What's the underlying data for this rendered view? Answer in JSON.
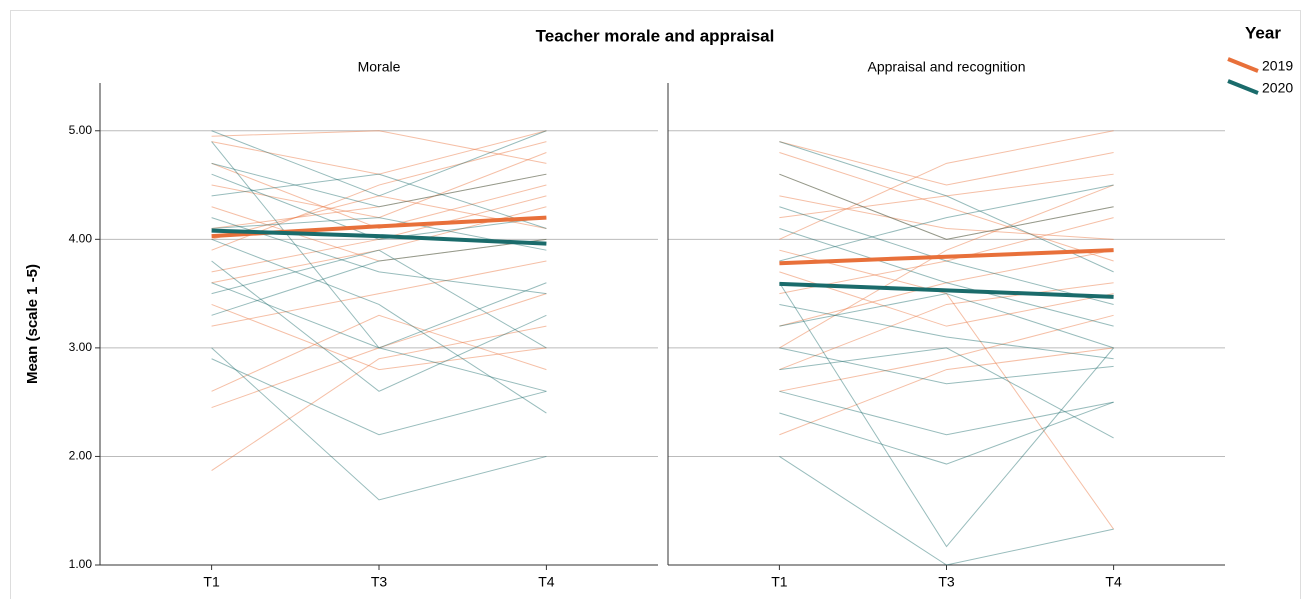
{
  "chart_data": {
    "type": "line",
    "title": "Teacher morale and appraisal",
    "y_label": "Mean (scale 1 -5)",
    "legend_title": "Year",
    "legend": "right",
    "grid": true,
    "categories": [
      "T1",
      "T3",
      "T4"
    ],
    "ylim": [
      1,
      5.44
    ],
    "yticks": [
      {
        "value": 1,
        "label": "1.00"
      },
      {
        "value": 2,
        "label": "2.00"
      },
      {
        "value": 3,
        "label": "3.00"
      },
      {
        "value": 4,
        "label": "4.00"
      },
      {
        "value": 5,
        "label": "5.00"
      }
    ],
    "panels": [
      {
        "title": "Morale",
        "series": [
          {
            "name": "2019",
            "color": "#e8703a",
            "values": [
              4.03,
              4.12,
              4.2
            ],
            "individuals": [
              [
                4.5,
                4.2,
                4.8
              ],
              [
                3.6,
                3.9,
                4.3
              ],
              [
                2.45,
                3.0,
                3.5
              ],
              [
                1.87,
                2.9,
                3.2
              ],
              [
                4.9,
                4.6,
                5.0
              ],
              [
                4.0,
                4.4,
                4.1
              ],
              [
                3.2,
                3.5,
                3.8
              ],
              [
                4.7,
                4.1,
                4.5
              ],
              [
                3.9,
                4.5,
                4.9
              ],
              [
                4.3,
                3.8,
                4.0
              ],
              [
                3.4,
                2.8,
                3.0
              ],
              [
                4.1,
                4.3,
                4.6
              ],
              [
                4.95,
                5.0,
                4.7
              ],
              [
                3.7,
                4.0,
                4.4
              ],
              [
                2.6,
                3.3,
                2.8
              ]
            ]
          },
          {
            "name": "2020",
            "color": "#1a6b6b",
            "values": [
              4.08,
              4.03,
              3.96
            ],
            "individuals": [
              [
                5.0,
                4.4,
                5.0
              ],
              [
                4.2,
                3.7,
                3.5
              ],
              [
                2.9,
                2.2,
                2.6
              ],
              [
                3.0,
                1.6,
                2.0
              ],
              [
                4.6,
                4.0,
                4.2
              ],
              [
                3.8,
                2.6,
                3.3
              ],
              [
                4.4,
                4.6,
                4.1
              ],
              [
                3.5,
                3.9,
                3.0
              ],
              [
                4.0,
                3.4,
                2.4
              ],
              [
                4.7,
                4.3,
                4.6
              ],
              [
                3.3,
                3.8,
                4.0
              ],
              [
                4.9,
                3.0,
                3.6
              ],
              [
                4.1,
                4.2,
                3.9
              ],
              [
                3.6,
                3.0,
                2.6
              ]
            ]
          }
        ]
      },
      {
        "title": "Appraisal and recognition",
        "series": [
          {
            "name": "2019",
            "color": "#e8703a",
            "values": [
              3.78,
              3.84,
              3.9
            ],
            "individuals": [
              [
                4.9,
                4.5,
                4.8
              ],
              [
                3.5,
                3.8,
                4.2
              ],
              [
                2.2,
                2.8,
                3.0
              ],
              [
                4.2,
                4.4,
                4.6
              ],
              [
                2.8,
                3.4,
                3.6
              ],
              [
                3.9,
                3.5,
                1.33
              ],
              [
                4.6,
                4.0,
                4.3
              ],
              [
                3.2,
                3.6,
                3.9
              ],
              [
                4.0,
                4.7,
                5.0
              ],
              [
                2.6,
                2.9,
                3.3
              ],
              [
                3.7,
                3.2,
                3.5
              ],
              [
                4.4,
                4.1,
                4.0
              ],
              [
                3.0,
                3.9,
                4.5
              ],
              [
                4.8,
                4.3,
                3.8
              ]
            ]
          },
          {
            "name": "2020",
            "color": "#1a6b6b",
            "values": [
              3.59,
              3.53,
              3.47
            ],
            "individuals": [
              [
                4.6,
                4.0,
                4.3
              ],
              [
                2.0,
                1.0,
                1.33
              ],
              [
                2.4,
                1.93,
                2.5
              ],
              [
                3.6,
                1.17,
                3.0
              ],
              [
                3.0,
                2.67,
                2.83
              ],
              [
                4.1,
                3.6,
                3.2
              ],
              [
                2.8,
                3.0,
                2.17
              ],
              [
                4.3,
                3.8,
                3.4
              ],
              [
                3.4,
                3.1,
                2.9
              ],
              [
                3.8,
                4.2,
                4.5
              ],
              [
                2.6,
                2.2,
                2.5
              ],
              [
                4.9,
                4.4,
                3.7
              ],
              [
                3.2,
                3.5,
                3.0
              ]
            ]
          }
        ]
      }
    ]
  }
}
